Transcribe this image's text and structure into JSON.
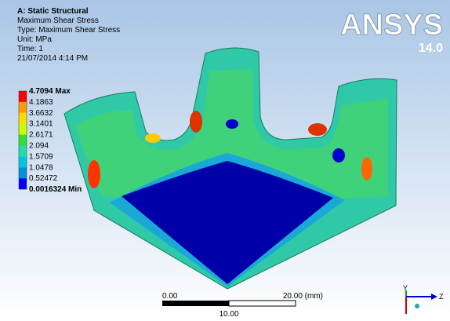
{
  "header": {
    "title": "A: Static Structural",
    "lines": [
      "Maximum Shear Stress",
      "Type: Maximum Shear Stress",
      "Unit: MPa",
      "Time: 1",
      "21/07/2014 4:14 PM"
    ]
  },
  "legend": {
    "labels": [
      "4.7094 Max",
      "4.1863",
      "3.6632",
      "3.1401",
      "2.6171",
      "2.094",
      "1.5709",
      "1.0478",
      "0.52472",
      "0.0016324 Min"
    ],
    "bands": [
      "#ff0000",
      "#ff9900",
      "#ffdd00",
      "#c8ff00",
      "#33dd33",
      "#22ddaa",
      "#00c8dd",
      "#0090e0",
      "#0000ff"
    ]
  },
  "logo": {
    "brand": "ANSYS",
    "version": "14.0"
  },
  "scale_bar": {
    "left": "0.00",
    "right": "20.00 (mm)",
    "middle": "10.00"
  },
  "triad": {
    "y": "Y",
    "z": "Z"
  }
}
